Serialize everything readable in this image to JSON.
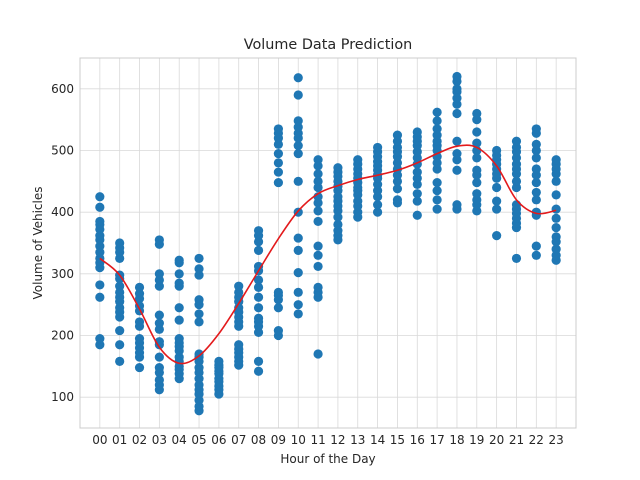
{
  "chart_data": {
    "type": "scatter",
    "title": "Volume Data Prediction",
    "xlabel": "Hour of the Day",
    "ylabel": "Volume of Vehicles",
    "categories": [
      "00",
      "01",
      "02",
      "03",
      "04",
      "05",
      "06",
      "07",
      "08",
      "09",
      "10",
      "11",
      "12",
      "13",
      "14",
      "15",
      "16",
      "17",
      "18",
      "19",
      "20",
      "21",
      "22",
      "23"
    ],
    "xlim": [
      -1,
      24
    ],
    "ylim": [
      50,
      650
    ],
    "yticks": [
      100,
      200,
      300,
      400,
      500,
      600
    ],
    "grid": true,
    "point_color": "#1f77b4",
    "line_color": "#e31a1c",
    "series": [
      {
        "kind": "points",
        "groups": [
          [
            185,
            195,
            262,
            282,
            310,
            318,
            325,
            335,
            345,
            355,
            362,
            372,
            380,
            385,
            408,
            425
          ],
          [
            158,
            185,
            208,
            230,
            238,
            245,
            255,
            262,
            270,
            280,
            292,
            298,
            325,
            335,
            342,
            350
          ],
          [
            148,
            165,
            172,
            180,
            188,
            195,
            215,
            222,
            240,
            248,
            260,
            268,
            278
          ],
          [
            112,
            120,
            128,
            140,
            148,
            165,
            185,
            190,
            210,
            220,
            233,
            280,
            290,
            300,
            348,
            355
          ],
          [
            130,
            138,
            145,
            150,
            158,
            165,
            175,
            182,
            188,
            195,
            225,
            245,
            280,
            285,
            300,
            318,
            322
          ],
          [
            78,
            85,
            95,
            105,
            112,
            120,
            130,
            140,
            148,
            158,
            165,
            170,
            222,
            235,
            250,
            258,
            298,
            308,
            325
          ],
          [
            105,
            112,
            118,
            125,
            130,
            138,
            142,
            148,
            152,
            158
          ],
          [
            152,
            158,
            165,
            172,
            178,
            185,
            215,
            222,
            230,
            238,
            245,
            255,
            262,
            270,
            280
          ],
          [
            142,
            158,
            205,
            215,
            222,
            228,
            245,
            262,
            278,
            290,
            305,
            312,
            338,
            352,
            362,
            370
          ],
          [
            200,
            208,
            245,
            258,
            265,
            270,
            448,
            465,
            480,
            495,
            510,
            520,
            528,
            535
          ],
          [
            235,
            250,
            270,
            302,
            338,
            358,
            400,
            450,
            495,
            508,
            520,
            528,
            538,
            548,
            590,
            618
          ],
          [
            170,
            262,
            270,
            278,
            312,
            330,
            345,
            385,
            402,
            415,
            425,
            440,
            450,
            462,
            475,
            485
          ],
          [
            355,
            362,
            370,
            380,
            392,
            402,
            410,
            418,
            425,
            435,
            442,
            450,
            458,
            465,
            472
          ],
          [
            392,
            400,
            410,
            418,
            428,
            435,
            440,
            448,
            455,
            462,
            470,
            478,
            485
          ],
          [
            400,
            412,
            425,
            435,
            445,
            455,
            460,
            468,
            475,
            482,
            490,
            498,
            505
          ],
          [
            415,
            420,
            438,
            450,
            460,
            470,
            480,
            490,
            498,
            505,
            515,
            525
          ],
          [
            395,
            418,
            430,
            445,
            455,
            465,
            478,
            488,
            498,
            508,
            515,
            522,
            530
          ],
          [
            405,
            420,
            435,
            448,
            470,
            480,
            490,
            500,
            508,
            515,
            525,
            535,
            548,
            562
          ],
          [
            405,
            412,
            468,
            485,
            495,
            515,
            560,
            575,
            585,
            595,
            600,
            612,
            620
          ],
          [
            402,
            412,
            420,
            430,
            448,
            460,
            468,
            488,
            500,
            512,
            530,
            550,
            560
          ],
          [
            362,
            405,
            418,
            440,
            455,
            462,
            470,
            478,
            485,
            492,
            500
          ],
          [
            325,
            375,
            382,
            390,
            398,
            405,
            412,
            440,
            450,
            462,
            470,
            478,
            488,
            498,
            505,
            515
          ],
          [
            330,
            345,
            395,
            400,
            420,
            432,
            448,
            460,
            470,
            488,
            500,
            510,
            528,
            535
          ],
          [
            322,
            330,
            340,
            352,
            360,
            375,
            390,
            405,
            428,
            450,
            462,
            470,
            478,
            485
          ]
        ]
      },
      {
        "kind": "fit-line",
        "x": [
          0,
          1,
          2,
          3,
          4,
          5,
          6,
          7,
          8,
          9,
          10,
          11,
          12,
          13,
          14,
          15,
          16,
          17,
          18,
          19,
          20,
          21,
          22,
          23
        ],
        "values": [
          325,
          298,
          243,
          181,
          155,
          167,
          203,
          252,
          305,
          357,
          402,
          430,
          443,
          453,
          460,
          468,
          480,
          495,
          507,
          505,
          475,
          420,
          398,
          403
        ]
      }
    ]
  }
}
